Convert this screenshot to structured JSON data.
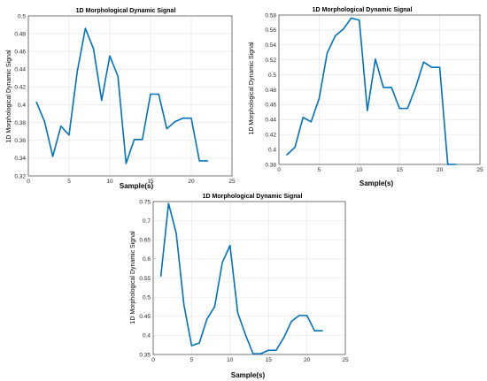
{
  "chart_data": [
    {
      "type": "line",
      "title": "1D Morphological Dynamic Signal",
      "xlabel": "Sample(s)",
      "ylabel": "1D Morphological Dynamic Signal",
      "xlim": [
        0,
        25
      ],
      "ylim": [
        0.32,
        0.5
      ],
      "xticks": [
        0,
        5,
        10,
        15,
        20,
        25
      ],
      "yticks": [
        0.32,
        0.34,
        0.36,
        0.38,
        0.4,
        0.42,
        0.44,
        0.46,
        0.48,
        0.5
      ],
      "ytick_labels": [
        "0.32",
        "0.34",
        "0.36",
        "0.38",
        "0.4",
        "0.42",
        "0.44",
        "0.46",
        "0.48",
        "0.5"
      ],
      "grid": true,
      "color": "#0072BD",
      "x": [
        1,
        2,
        3,
        4,
        5,
        6,
        7,
        8,
        9,
        10,
        11,
        12,
        13,
        14,
        15,
        16,
        17,
        18,
        19,
        20,
        21,
        22
      ],
      "y": [
        0.403,
        0.381,
        0.342,
        0.376,
        0.366,
        0.437,
        0.486,
        0.463,
        0.405,
        0.455,
        0.432,
        0.334,
        0.361,
        0.361,
        0.412,
        0.412,
        0.373,
        0.381,
        0.385,
        0.385,
        0.337,
        0.337
      ]
    },
    {
      "type": "line",
      "title": "1D Morphological Dynamic Signal",
      "xlabel": "Sample(s)",
      "ylabel": "1D Morphological Dynamic Signal",
      "xlim": [
        0,
        25
      ],
      "ylim": [
        0.38,
        0.58
      ],
      "xticks": [
        0,
        5,
        10,
        15,
        20,
        25
      ],
      "yticks": [
        0.38,
        0.4,
        0.42,
        0.44,
        0.46,
        0.48,
        0.5,
        0.52,
        0.54,
        0.56,
        0.58
      ],
      "ytick_labels": [
        "0.38",
        "0.4",
        "0.42",
        "0.44",
        "0.46",
        "0.48",
        "0.5",
        "0.52",
        "0.54",
        "0.56",
        "0.58"
      ],
      "grid": true,
      "color": "#0072BD",
      "x": [
        1,
        2,
        3,
        4,
        5,
        6,
        7,
        8,
        9,
        10,
        11,
        12,
        13,
        14,
        15,
        16,
        17,
        18,
        19,
        20,
        21,
        22
      ],
      "y": [
        0.393,
        0.403,
        0.443,
        0.437,
        0.468,
        0.529,
        0.552,
        0.561,
        0.576,
        0.573,
        0.452,
        0.521,
        0.483,
        0.483,
        0.455,
        0.455,
        0.483,
        0.517,
        0.51,
        0.51,
        0.38,
        0.38
      ]
    },
    {
      "type": "line",
      "title": "1D Morphological Dynamic Signal",
      "xlabel": "Sample(s)",
      "ylabel": "1D Morphological Dynamic Signal",
      "xlim": [
        0,
        25
      ],
      "ylim": [
        0.35,
        0.75
      ],
      "xticks": [
        0,
        5,
        10,
        15,
        20,
        25
      ],
      "yticks": [
        0.35,
        0.4,
        0.45,
        0.5,
        0.55,
        0.6,
        0.65,
        0.7,
        0.75
      ],
      "ytick_labels": [
        "0.35",
        "0.4",
        "0.45",
        "0.5",
        "0.55",
        "0.6",
        "0.65",
        "0.7",
        "0.75"
      ],
      "grid": true,
      "color": "#0072BD",
      "x": [
        1,
        2,
        3,
        4,
        5,
        6,
        7,
        8,
        9,
        10,
        11,
        12,
        13,
        14,
        15,
        16,
        17,
        18,
        19,
        20,
        21,
        22
      ],
      "y": [
        0.555,
        0.745,
        0.667,
        0.48,
        0.373,
        0.38,
        0.443,
        0.475,
        0.591,
        0.635,
        0.459,
        0.402,
        0.352,
        0.352,
        0.361,
        0.361,
        0.394,
        0.437,
        0.452,
        0.452,
        0.412,
        0.412
      ]
    }
  ]
}
